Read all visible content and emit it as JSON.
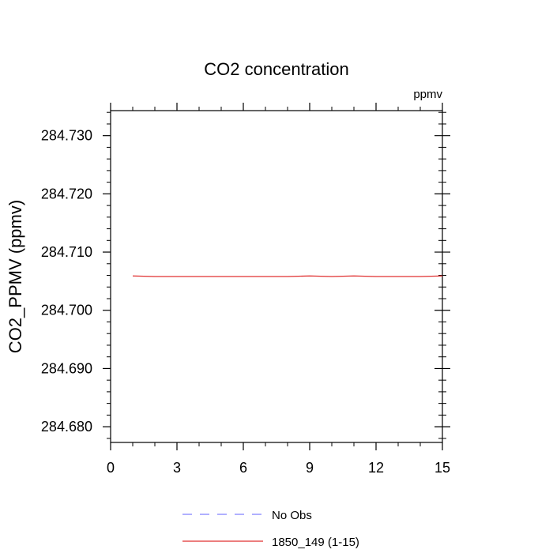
{
  "chart_data": {
    "type": "line",
    "title": "CO2 concentration",
    "units": "ppmv",
    "xlabel": "",
    "ylabel": "CO2_PPMV  (ppmv)",
    "xlim": [
      0,
      15
    ],
    "ylim": [
      284.6773,
      284.7343
    ],
    "x_ticks": [
      0,
      3,
      6,
      9,
      12,
      15
    ],
    "x_tick_labels": [
      "0",
      "3",
      "6",
      "9",
      "12",
      "15"
    ],
    "y_ticks": [
      284.68,
      284.69,
      284.7,
      284.71,
      284.72,
      284.73
    ],
    "y_tick_labels": [
      "284.680",
      "284.690",
      "284.700",
      "284.710",
      "284.720",
      "284.730"
    ],
    "grid": false,
    "legend_position": "bottom",
    "series": [
      {
        "name": "No Obs",
        "style": "dashed",
        "color": "#8080ff",
        "x": [],
        "y": []
      },
      {
        "name": "1850_149 (1-15)",
        "style": "solid",
        "color": "#e03030",
        "x": [
          1,
          2,
          3,
          4,
          5,
          6,
          7,
          8,
          9,
          10,
          11,
          12,
          13,
          14,
          15
        ],
        "y": [
          284.7059,
          284.7058,
          284.7058,
          284.7058,
          284.7058,
          284.7058,
          284.7058,
          284.7058,
          284.7059,
          284.7058,
          284.7059,
          284.7058,
          284.7058,
          284.7058,
          284.7059
        ]
      }
    ]
  }
}
